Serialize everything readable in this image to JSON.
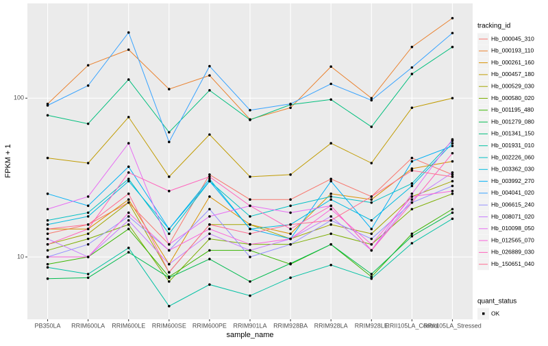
{
  "chart_data": {
    "type": "line",
    "x_label": "sample_name",
    "y_label": "FPKM + 1",
    "log_y": true,
    "grid": true,
    "legend_title": "tracking_id",
    "status_legend_title": "quant_status",
    "status_legend_label": "OK",
    "point_color": "#000000",
    "categories": [
      "PB350LA",
      "RRIM600LA",
      "RRIM600LE",
      "RRIM600SE",
      "RRIM600PE",
      "RRIM901LA",
      "RRIM928BA",
      "RRIM928LA",
      "RRIM928LE",
      "RRII105LA_Control",
      "RRII105LA_Stressed"
    ],
    "ylim": [
      4.05,
      395
    ],
    "yticks": [
      10,
      100
    ],
    "series": [
      {
        "name": "Hb_000045_310",
        "color": "#F8766D",
        "values": [
          14,
          16,
          22,
          12,
          33,
          23,
          23,
          31,
          24,
          42,
          33
        ]
      },
      {
        "name": "Hb_000193_110",
        "color": "#EA8331",
        "values": [
          92,
          161,
          202,
          114,
          139,
          73.5,
          87,
          158,
          100,
          210,
          319
        ]
      },
      {
        "name": "Hb_000261_160",
        "color": "#D89000",
        "values": [
          15,
          15,
          23,
          9,
          24,
          16,
          14,
          25,
          23,
          36,
          40
        ]
      },
      {
        "name": "Hb_000457_180",
        "color": "#C09B00",
        "values": [
          42,
          39,
          76,
          32,
          59,
          32,
          33,
          52,
          39,
          87,
          100
        ]
      },
      {
        "name": "Hb_000529_030",
        "color": "#A3A500",
        "values": [
          12,
          14,
          22,
          8,
          16,
          16,
          13,
          16,
          14,
          24,
          30
        ]
      },
      {
        "name": "Hb_000580_020",
        "color": "#7CAE00",
        "values": [
          11,
          13,
          16,
          7,
          13,
          12,
          12,
          14,
          12,
          20,
          25
        ]
      },
      {
        "name": "Hb_001195_480",
        "color": "#39B600",
        "values": [
          9,
          10,
          15,
          7.5,
          11,
          11,
          9,
          12,
          7.5,
          14,
          20
        ]
      },
      {
        "name": "Hb_001279_080",
        "color": "#00BB4E",
        "values": [
          7.3,
          7.4,
          10.7,
          7.4,
          9.7,
          7,
          9.1,
          12,
          7.8,
          13.5,
          19
        ]
      },
      {
        "name": "Hb_001341_150",
        "color": "#00BF7D",
        "values": [
          78,
          69,
          131,
          61,
          112,
          73,
          91,
          98,
          66,
          142,
          210
        ]
      },
      {
        "name": "Hb_001931_010",
        "color": "#00C1A3",
        "values": [
          8.6,
          7.8,
          11.4,
          4.9,
          6.7,
          5.7,
          7.4,
          8.9,
          7.3,
          12.2,
          17.4
        ]
      },
      {
        "name": "Hb_002226_060",
        "color": "#00BFC4",
        "values": [
          17,
          19,
          31,
          14,
          30,
          18,
          21,
          24,
          22,
          29,
          54
        ]
      },
      {
        "name": "Hb_003362_030",
        "color": "#00BAE0",
        "values": [
          16,
          18,
          30,
          15,
          31,
          15,
          16,
          23,
          17,
          28,
          52
        ]
      },
      {
        "name": "Hb_003992_270",
        "color": "#00B0F6",
        "values": [
          25,
          21,
          37,
          15,
          30,
          15,
          13,
          30,
          15,
          40,
          50
        ]
      },
      {
        "name": "Hb_004041_020",
        "color": "#35A2FF",
        "values": [
          90,
          120,
          259,
          53,
          159,
          84,
          92,
          123,
          97,
          156,
          257
        ]
      },
      {
        "name": "Hb_006615_240",
        "color": "#9590FF",
        "values": [
          10,
          12,
          18,
          11,
          20,
          10,
          12,
          17,
          13,
          22,
          28
        ]
      },
      {
        "name": "Hb_008071_020",
        "color": "#C77CFF",
        "values": [
          13,
          10,
          17,
          9,
          14,
          11,
          13,
          18,
          11,
          23,
          34
        ]
      },
      {
        "name": "Hb_010098_050",
        "color": "#E76BF3",
        "values": [
          20,
          24,
          52,
          12,
          18,
          21,
          19,
          21,
          11,
          25,
          55
        ]
      },
      {
        "name": "Hb_012565_070",
        "color": "#FA62DB",
        "values": [
          10,
          10,
          19,
          11,
          15,
          12,
          13,
          20,
          12,
          24,
          26
        ]
      },
      {
        "name": "Hb_026889_030",
        "color": "#FF62BC",
        "values": [
          12,
          15,
          34,
          26,
          32,
          21,
          15,
          21,
          11,
          22,
          45
        ]
      },
      {
        "name": "Hb_150651_040",
        "color": "#FF6C91",
        "values": [
          15,
          16,
          25,
          8,
          16,
          14,
          16,
          17,
          24,
          35,
          32
        ]
      }
    ]
  }
}
